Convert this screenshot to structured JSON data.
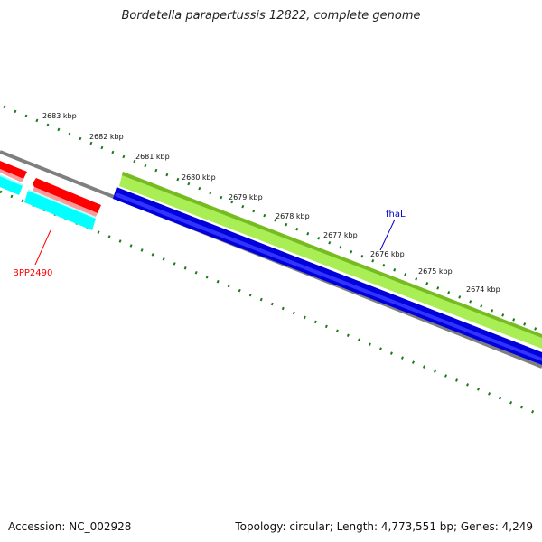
{
  "title": "Bordetella parapertussis 12822, complete genome",
  "footer": {
    "accession": "Accession: NC_002928",
    "info": "Topology: circular; Length: 4,773,551 bp; Genes: 4,249"
  },
  "ticks": [
    "2683 kbp",
    "2682 kbp",
    "2681 kbp",
    "2680 kbp",
    "2679 kbp",
    "2678 kbp",
    "2677 kbp",
    "2676 kbp",
    "2675 kbp",
    "2674 kbp"
  ],
  "features": {
    "fhaL": {
      "label": "fhaL",
      "color": "#0000cc"
    },
    "BPP2490": {
      "label": "BPP2490",
      "color": "#ff0000"
    }
  },
  "colors": {
    "backbone": "#7f7f7f",
    "tick": "#1a7a1a",
    "forward_gene": "#ff0000",
    "reverse_gene": "#00ffff",
    "feature_green": "#aaee55",
    "feature_blue": "#0000dd"
  }
}
